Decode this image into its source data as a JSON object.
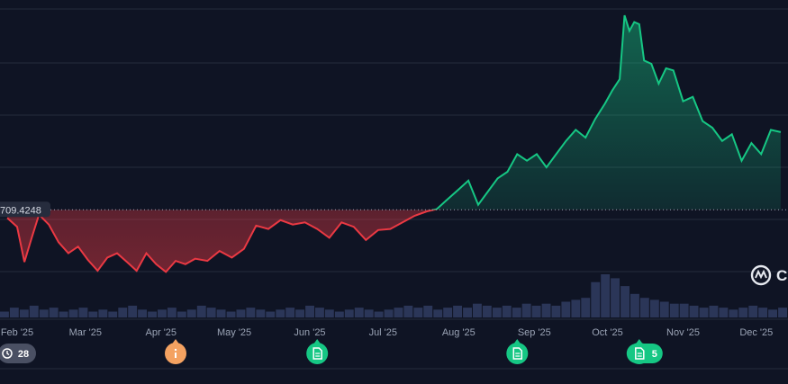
{
  "chart_data": {
    "type": "area",
    "baseline": {
      "value": 709.4248,
      "label": "709.4248"
    },
    "x_tick_labels": [
      "Feb '25",
      "Mar '25",
      "Apr '25",
      "May '25",
      "Jun '25",
      "Jul '25",
      "Aug '25",
      "Sep '25",
      "Oct '25",
      "Nov '25",
      "Dec '25"
    ],
    "series": [
      {
        "x": [
          "2025-01-28",
          "2025-02-01",
          "2025-02-04",
          "2025-02-07",
          "2025-02-10",
          "2025-02-14",
          "2025-02-18",
          "2025-02-22",
          "2025-02-26",
          "2025-03-02",
          "2025-03-06",
          "2025-03-10",
          "2025-03-14",
          "2025-03-18",
          "2025-03-22",
          "2025-03-26",
          "2025-03-30",
          "2025-04-03",
          "2025-04-07",
          "2025-04-11",
          "2025-04-15",
          "2025-04-20",
          "2025-04-25",
          "2025-04-30",
          "2025-05-05",
          "2025-05-10",
          "2025-05-15",
          "2025-05-20",
          "2025-05-25",
          "2025-05-30",
          "2025-06-04",
          "2025-06-09",
          "2025-06-14",
          "2025-06-19",
          "2025-06-24",
          "2025-06-29",
          "2025-07-04",
          "2025-07-09",
          "2025-07-14",
          "2025-07-19",
          "2025-07-23",
          "2025-07-27",
          "2025-08-01",
          "2025-08-05",
          "2025-08-09",
          "2025-08-13",
          "2025-08-17",
          "2025-08-21",
          "2025-08-25",
          "2025-08-29",
          "2025-09-02",
          "2025-09-06",
          "2025-09-10",
          "2025-09-14",
          "2025-09-18",
          "2025-09-22",
          "2025-09-26",
          "2025-09-30",
          "2025-10-03",
          "2025-10-06",
          "2025-10-08",
          "2025-10-10",
          "2025-10-12",
          "2025-10-14",
          "2025-10-16",
          "2025-10-19",
          "2025-10-22",
          "2025-10-25",
          "2025-10-28",
          "2025-11-01",
          "2025-11-05",
          "2025-11-09",
          "2025-11-13",
          "2025-11-17",
          "2025-11-21",
          "2025-11-25",
          "2025-11-29",
          "2025-12-03",
          "2025-12-07",
          "2025-12-11"
        ],
        "y": [
          702,
          694,
          662,
          684,
          705,
          696,
          680,
          670,
          676,
          664,
          654,
          666,
          670,
          662,
          654,
          670,
          660,
          653,
          663,
          660,
          665,
          663,
          672,
          666,
          674,
          695,
          692,
          700,
          696,
          698,
          692,
          684,
          698,
          694,
          682,
          691,
          692,
          698,
          704,
          708,
          710,
          718,
          728,
          736,
          714,
          726,
          738,
          744,
          760,
          754,
          760,
          748,
          760,
          772,
          782,
          775,
          792,
          806,
          818,
          828,
          886,
          872,
          880,
          878,
          845,
          842,
          824,
          838,
          836,
          808,
          812,
          790,
          784,
          772,
          778,
          754,
          770,
          760,
          782,
          780
        ]
      }
    ],
    "volume": [
      3,
      5,
      4,
      6,
      4,
      5,
      3,
      4,
      5,
      3,
      4,
      3,
      5,
      6,
      4,
      3,
      4,
      5,
      3,
      4,
      6,
      5,
      4,
      3,
      4,
      5,
      4,
      3,
      4,
      5,
      4,
      6,
      5,
      4,
      3,
      4,
      5,
      4,
      3,
      4,
      5,
      6,
      5,
      6,
      4,
      5,
      6,
      5,
      7,
      6,
      5,
      6,
      5,
      7,
      6,
      7,
      6,
      8,
      9,
      10,
      18,
      22,
      20,
      16,
      12,
      10,
      9,
      8,
      7,
      7,
      6,
      5,
      6,
      5,
      4,
      5,
      6,
      5,
      4,
      5
    ],
    "y_range": [
      610,
      900
    ],
    "x_range": [
      "2025-01-25",
      "2025-12-14"
    ],
    "grid": true,
    "colors": {
      "up": "#16c784",
      "down": "#ea3943",
      "background": "#0f1424",
      "grid": "#262c3d",
      "volume": "#2b3658"
    }
  },
  "events": [
    {
      "name": "history",
      "label": "28",
      "date": "2025-02-01",
      "color": "#4a5063",
      "icon": "clock-icon"
    },
    {
      "name": "info",
      "label": "",
      "date": "2025-04-07",
      "color": "#f4a261",
      "icon": "info-icon"
    },
    {
      "name": "news-1",
      "label": "",
      "date": "2025-06-04",
      "color": "#16c784",
      "icon": "document-icon"
    },
    {
      "name": "news-2",
      "label": "",
      "date": "2025-08-25",
      "color": "#16c784",
      "icon": "document-icon"
    },
    {
      "name": "news-3",
      "label": "5",
      "date": "2025-10-14",
      "color": "#16c784",
      "icon": "document-icon"
    }
  ],
  "watermark": {
    "logo": "coinmarketcap-logo",
    "text": "C"
  }
}
